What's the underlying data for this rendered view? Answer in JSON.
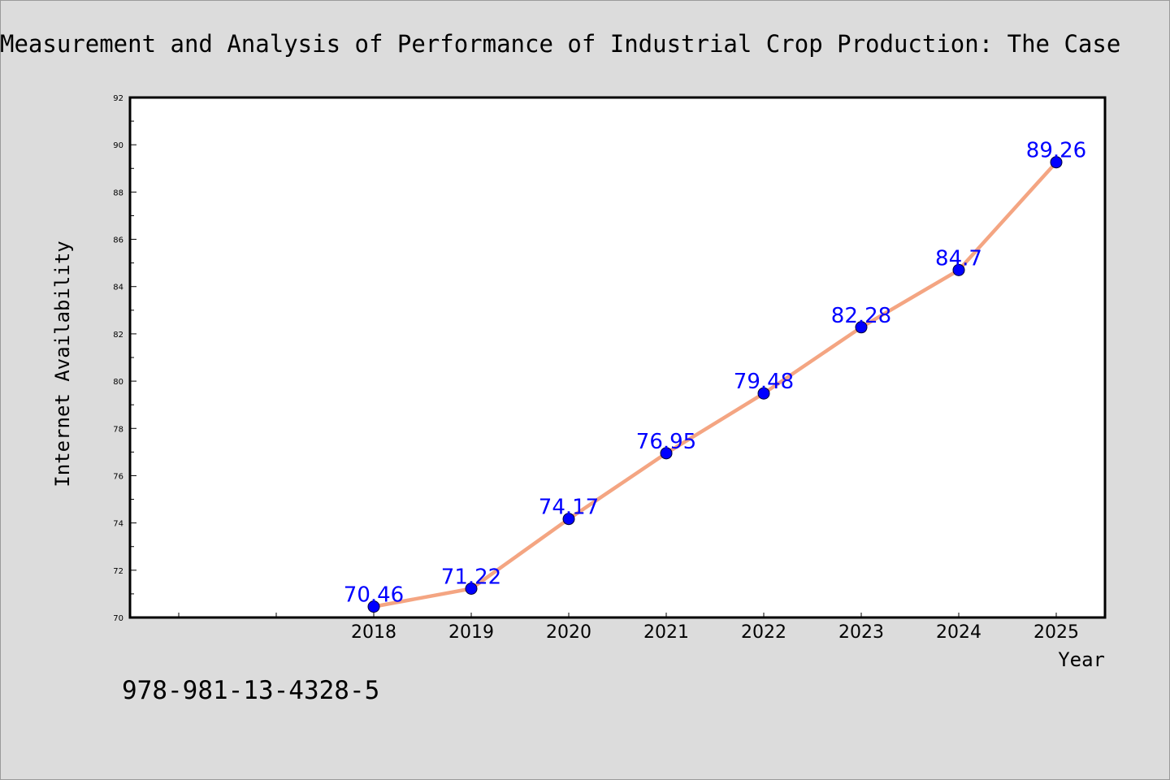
{
  "title": "Measurement and Analysis of Performance of Industrial Crop Production: The Case",
  "isbn": "978-981-13-4328-5",
  "colors": {
    "background": "#dcdcdc",
    "plot_area": "#ffffff",
    "line": "#f4a582",
    "marker": "#0000ff",
    "data_label": "#0000ff"
  },
  "chart_data": {
    "type": "line",
    "xlabel": "Year",
    "ylabel": "Internet Availability",
    "categories": [
      "2018",
      "2019",
      "2020",
      "2021",
      "2022",
      "2023",
      "2024",
      "2025"
    ],
    "x_range": [
      2015.5,
      2025.5
    ],
    "series": [
      {
        "values": [
          70.46,
          71.22,
          74.17,
          76.95,
          79.48,
          82.28,
          84.7,
          89.26
        ],
        "labels": [
          "70.46",
          "71.22",
          "74.17",
          "76.95",
          "79.48",
          "82.28",
          "84.7",
          "89.26"
        ]
      }
    ],
    "ylim": [
      70,
      92
    ],
    "yticks": [
      70,
      72,
      74,
      76,
      78,
      80,
      82,
      84,
      86,
      88,
      90,
      92
    ],
    "grid": false,
    "legend": "none"
  }
}
